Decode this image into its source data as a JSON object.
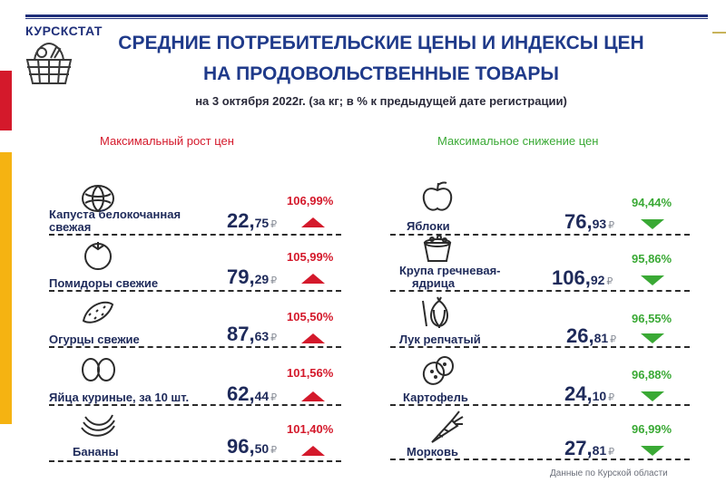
{
  "brand": "КУРСКСТАТ",
  "title_line1": "СРЕДНИЕ ПОТРЕБИТЕЛЬСКИЕ ЦЕНЫ И ИНДЕКСЫ ЦЕН",
  "title_line2": "НА ПРОДОВОЛЬСТВЕННЫЕ ТОВАРЫ",
  "subtitle": "на 3 октября  2022г. (за кг; в % к предыдущей дате регистрации)",
  "rise_heading": "Максимальный  рост цен",
  "fall_heading": "Максимальное  снижение  цен",
  "currency": "₽",
  "colors": {
    "rise": "#d4192b",
    "fall": "#3aa935",
    "title": "#1f3a8a"
  },
  "rise_items": [
    {
      "name1": "Капуста белокочанная",
      "name2": "свежая",
      "rub": "22,",
      "kop": "75",
      "pct": "106,99%",
      "icon": "cabbage-icon"
    },
    {
      "name1": "Помидоры свежие",
      "name2": "",
      "rub": "79,",
      "kop": "29",
      "pct": "105,99%",
      "icon": "tomato-icon"
    },
    {
      "name1": "Огурцы свежие",
      "name2": "",
      "rub": "87,",
      "kop": "63",
      "pct": "105,50%",
      "icon": "cucumber-icon"
    },
    {
      "name1": "Яйца куриные, за 10 шт.",
      "name2": "",
      "rub": "62,",
      "kop": "44",
      "pct": "101,56%",
      "icon": "eggs-icon"
    },
    {
      "name1": "Бананы",
      "name2": "",
      "rub": "96,",
      "kop": "50",
      "pct": "101,40%",
      "icon": "bananas-icon"
    }
  ],
  "fall_items": [
    {
      "name1": "Яблоки",
      "name2": "",
      "rub": "76,",
      "kop": "93",
      "pct": "94,44%",
      "icon": "apple-icon"
    },
    {
      "name1": "Крупа гречневая-",
      "name2": "ядрица",
      "rub": "106,",
      "kop": "92",
      "pct": "95,86%",
      "icon": "buckwheat-icon"
    },
    {
      "name1": "Лук репчатый",
      "name2": "",
      "rub": "26,",
      "kop": "81",
      "pct": "96,55%",
      "icon": "onion-icon"
    },
    {
      "name1": "Картофель",
      "name2": "",
      "rub": "24,",
      "kop": "10",
      "pct": "96,88%",
      "icon": "potato-icon"
    },
    {
      "name1": "Морковь",
      "name2": "",
      "rub": "27,",
      "kop": "81",
      "pct": "96,99%",
      "icon": "carrot-icon"
    }
  ],
  "footnote": "Данные по Курской области"
}
